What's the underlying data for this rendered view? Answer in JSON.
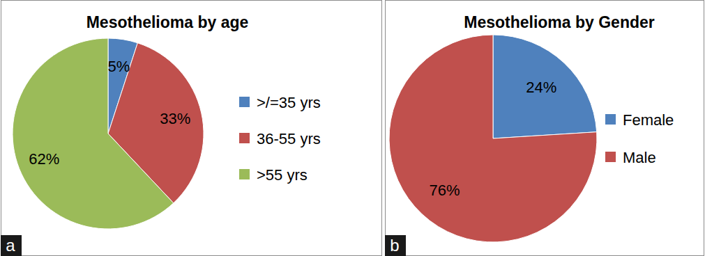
{
  "chart_data": [
    {
      "type": "pie",
      "title": "Mesothelioma by age",
      "panel_label": "a",
      "categories": [
        ">/=35 yrs",
        "36-55 yrs",
        ">55 yrs"
      ],
      "values": [
        5,
        33,
        62
      ],
      "value_labels": [
        "5%",
        "33%",
        "62%"
      ],
      "colors": [
        "#4f81bd",
        "#c0504d",
        "#9bbb59"
      ],
      "data_labels": true,
      "legend": "right"
    },
    {
      "type": "pie",
      "title": "Mesothelioma by Gender",
      "panel_label": "b",
      "categories": [
        "Female",
        "Male"
      ],
      "values": [
        24,
        76
      ],
      "value_labels": [
        "24%",
        "76%"
      ],
      "colors": [
        "#4f81bd",
        "#c0504d"
      ],
      "data_labels": true,
      "legend": "right"
    }
  ]
}
